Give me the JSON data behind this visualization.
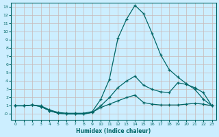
{
  "xlabel": "Humidex (Indice chaleur)",
  "bg_color": "#cceeff",
  "grid_color": "#aaddcc",
  "line_color": "#006666",
  "xlim": [
    -0.5,
    23.5
  ],
  "ylim": [
    -0.7,
    13.5
  ],
  "x_ticks": [
    0,
    1,
    2,
    3,
    4,
    5,
    6,
    7,
    8,
    9,
    10,
    11,
    12,
    13,
    14,
    15,
    16,
    17,
    18,
    19,
    20,
    21,
    22,
    23
  ],
  "y_ticks": [
    0,
    1,
    2,
    3,
    4,
    5,
    6,
    7,
    8,
    9,
    10,
    11,
    12,
    13
  ],
  "line1_x": [
    0,
    1,
    2,
    3,
    4,
    5,
    6,
    7,
    8,
    9,
    10,
    11,
    12,
    13,
    14,
    15,
    16,
    17,
    18,
    19,
    20,
    21,
    22,
    23
  ],
  "line1_y": [
    1.0,
    1.0,
    1.1,
    1.0,
    0.5,
    0.2,
    0.1,
    0.1,
    0.1,
    0.3,
    1.8,
    4.2,
    9.2,
    11.5,
    13.2,
    12.2,
    9.8,
    7.2,
    5.4,
    4.5,
    3.7,
    3.0,
    1.8,
    1.0
  ],
  "line2_x": [
    0,
    1,
    2,
    3,
    4,
    5,
    6,
    7,
    8,
    9,
    10,
    11,
    12,
    13,
    14,
    15,
    16,
    17,
    18,
    19,
    20,
    21,
    22,
    23
  ],
  "line2_y": [
    1.0,
    1.0,
    1.1,
    0.9,
    0.4,
    0.1,
    0.0,
    0.0,
    0.0,
    0.2,
    1.0,
    2.0,
    3.2,
    4.0,
    4.6,
    3.5,
    3.0,
    2.7,
    2.6,
    3.8,
    3.6,
    3.2,
    2.6,
    1.0
  ],
  "line3_x": [
    0,
    1,
    2,
    3,
    4,
    5,
    6,
    7,
    8,
    9,
    10,
    11,
    12,
    13,
    14,
    15,
    16,
    17,
    18,
    19,
    20,
    21,
    22,
    23
  ],
  "line3_y": [
    1.0,
    1.0,
    1.1,
    0.9,
    0.4,
    0.1,
    0.0,
    0.0,
    0.0,
    0.2,
    0.8,
    1.2,
    1.6,
    2.0,
    2.3,
    1.4,
    1.2,
    1.1,
    1.1,
    1.1,
    1.2,
    1.3,
    1.2,
    1.0
  ]
}
